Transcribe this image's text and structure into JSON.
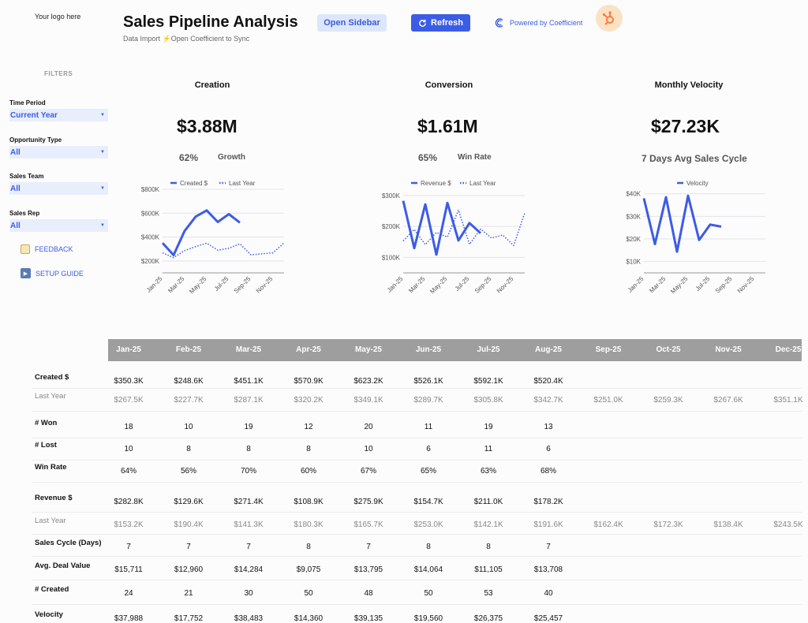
{
  "header": {
    "logo_text": "Your logo here",
    "title": "Sales Pipeline Analysis",
    "subtitle_prefix": "Data Import",
    "subtitle_suffix": "Open Coefficient to Sync",
    "open_sidebar_label": "Open Sidebar",
    "refresh_label": "Refresh",
    "powered_by_label": "Powered by Coefficient",
    "accent_color": "#3d5ce6"
  },
  "sidebar": {
    "filters_title": "FILTERS",
    "filters": [
      {
        "label": "Time Period",
        "value": "Current Year"
      },
      {
        "label": "Opportunity Type",
        "value": "All"
      },
      {
        "label": "Sales Team",
        "value": "All"
      },
      {
        "label": "Sales Rep",
        "value": "All"
      }
    ],
    "feedback_label": "FEEDBACK",
    "setup_guide_label": "SETUP GUIDE"
  },
  "kpis": {
    "creation": {
      "title": "Creation",
      "value": "$3.88M",
      "pct": "62%",
      "sub": "Growth"
    },
    "conversion": {
      "title": "Conversion",
      "value": "$1.61M",
      "pct": "65%",
      "sub": "Win Rate"
    },
    "velocity": {
      "title": "Monthly Velocity",
      "value": "$27.23K",
      "sub": "7 Days Avg Sales Cycle"
    }
  },
  "chart_data": [
    {
      "type": "line",
      "x": [
        "Jan-25",
        "Feb-25",
        "Mar-25",
        "Apr-25",
        "May-25",
        "Jun-25",
        "Jul-25",
        "Aug-25",
        "Sep-25",
        "Oct-25",
        "Nov-25",
        "Dec-25"
      ],
      "x_tick_labels": [
        "Jan-25",
        "Mar-25",
        "May-25",
        "Jul-25",
        "Sep-25",
        "Nov-25"
      ],
      "ylim": [
        100000,
        800000
      ],
      "y_ticks": [
        200000,
        400000,
        600000,
        800000
      ],
      "y_tick_labels": [
        "$200K",
        "$400K",
        "$600K",
        "$800K"
      ],
      "series": [
        {
          "name": "Created $",
          "style": "solid",
          "values": [
            350300,
            248600,
            451100,
            570900,
            623200,
            526100,
            592100,
            520400,
            null,
            null,
            null,
            null
          ]
        },
        {
          "name": "Last Year",
          "style": "dotted",
          "values": [
            267500,
            227700,
            287100,
            320200,
            349100,
            289700,
            305800,
            342700,
            251000,
            259300,
            267600,
            351100
          ]
        }
      ],
      "legend": "top"
    },
    {
      "type": "line",
      "x": [
        "Jan-25",
        "Feb-25",
        "Mar-25",
        "Apr-25",
        "May-25",
        "Jun-25",
        "Jul-25",
        "Aug-25",
        "Sep-25",
        "Oct-25",
        "Nov-25",
        "Dec-25"
      ],
      "x_tick_labels": [
        "Jan-25",
        "Mar-25",
        "May-25",
        "Jul-25",
        "Sep-25",
        "Nov-25"
      ],
      "ylim": [
        50000,
        320000
      ],
      "y_ticks": [
        100000,
        200000,
        300000
      ],
      "y_tick_labels": [
        "$100K",
        "$200K",
        "$300K"
      ],
      "series": [
        {
          "name": "Revenue $",
          "style": "solid",
          "values": [
            282800,
            129600,
            271400,
            108900,
            275900,
            154700,
            211000,
            178200,
            null,
            null,
            null,
            null
          ]
        },
        {
          "name": "Last Year",
          "style": "dotted",
          "values": [
            153200,
            190400,
            141300,
            180300,
            165700,
            253000,
            142100,
            191600,
            162400,
            172300,
            138400,
            243500
          ]
        }
      ],
      "legend": "top"
    },
    {
      "type": "line",
      "x": [
        "Jan-25",
        "Feb-25",
        "Mar-25",
        "Apr-25",
        "May-25",
        "Jun-25",
        "Jul-25",
        "Aug-25",
        "Sep-25",
        "Oct-25",
        "Nov-25",
        "Dec-25"
      ],
      "x_tick_labels": [
        "Jan-25",
        "Mar-25",
        "May-25",
        "Jul-25",
        "Sep-25",
        "Nov-25"
      ],
      "ylim": [
        5000,
        42000
      ],
      "y_ticks": [
        10000,
        20000,
        30000,
        40000
      ],
      "y_tick_labels": [
        "$10K",
        "$20K",
        "$30K",
        "$40K"
      ],
      "series": [
        {
          "name": "Velocity",
          "style": "solid",
          "values": [
            37988,
            17752,
            38483,
            14360,
            39135,
            19560,
            26375,
            25457,
            null,
            null,
            null,
            null
          ]
        }
      ],
      "legend": "top"
    }
  ],
  "table": {
    "columns": [
      "Jan-25",
      "Feb-25",
      "Mar-25",
      "Apr-25",
      "May-25",
      "Jun-25",
      "Jul-25",
      "Aug-25",
      "Sep-25",
      "Oct-25",
      "Nov-25",
      "Dec-25"
    ],
    "rows": [
      {
        "label": "Created $",
        "muted": false,
        "values": [
          "$350.3K",
          "$248.6K",
          "$451.1K",
          "$570.9K",
          "$623.2K",
          "$526.1K",
          "$592.1K",
          "$520.4K"
        ]
      },
      {
        "label": "Last Year",
        "muted": true,
        "values": [
          "$267.5K",
          "$227.7K",
          "$287.1K",
          "$320.2K",
          "$349.1K",
          "$289.7K",
          "$305.8K",
          "$342.7K",
          "$251.0K",
          "$259.3K",
          "$267.6K",
          "$351.1K"
        ]
      },
      {
        "label": "# Won",
        "muted": false,
        "values": [
          "18",
          "10",
          "19",
          "12",
          "20",
          "11",
          "19",
          "13"
        ]
      },
      {
        "label": "# Lost",
        "muted": false,
        "values": [
          "10",
          "8",
          "8",
          "8",
          "10",
          "6",
          "11",
          "6"
        ]
      },
      {
        "label": "Win Rate",
        "muted": false,
        "values": [
          "64%",
          "56%",
          "70%",
          "60%",
          "67%",
          "65%",
          "63%",
          "68%"
        ]
      },
      {
        "label": "Revenue $",
        "muted": false,
        "values": [
          "$282.8K",
          "$129.6K",
          "$271.4K",
          "$108.9K",
          "$275.9K",
          "$154.7K",
          "$211.0K",
          "$178.2K"
        ]
      },
      {
        "label": "Last Year",
        "muted": true,
        "values": [
          "$153.2K",
          "$190.4K",
          "$141.3K",
          "$180.3K",
          "$165.7K",
          "$253.0K",
          "$142.1K",
          "$191.6K",
          "$162.4K",
          "$172.3K",
          "$138.4K",
          "$243.5K"
        ]
      },
      {
        "label": "Sales Cycle (Days)",
        "muted": false,
        "values": [
          "7",
          "7",
          "7",
          "8",
          "7",
          "8",
          "8",
          "7"
        ]
      },
      {
        "label": "Avg. Deal Value",
        "muted": false,
        "values": [
          "$15,711",
          "$12,960",
          "$14,284",
          "$9,075",
          "$13,795",
          "$14,064",
          "$11,105",
          "$13,708"
        ]
      },
      {
        "label": "# Created",
        "muted": false,
        "values": [
          "24",
          "21",
          "30",
          "50",
          "48",
          "50",
          "53",
          "40"
        ]
      },
      {
        "label": "Velocity",
        "muted": false,
        "values": [
          "$37,988",
          "$17,752",
          "$38,483",
          "$14,360",
          "$39,135",
          "$19,560",
          "$26,375",
          "$25,457"
        ]
      }
    ]
  }
}
